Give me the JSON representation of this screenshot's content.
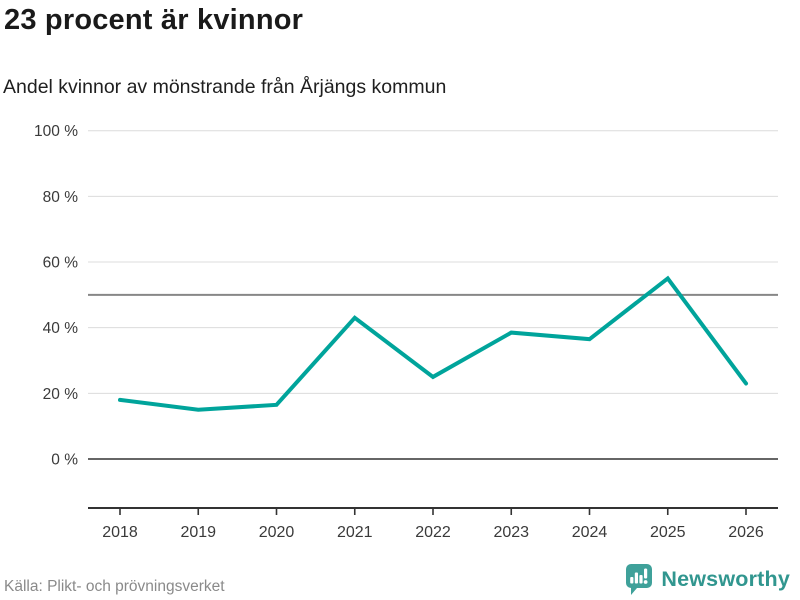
{
  "header": {
    "title": "23 procent är kvinnor",
    "subtitle": "Andel kvinnor av mönstrande från Årjängs kommun"
  },
  "chart_data": {
    "type": "line",
    "title": "23 procent är kvinnor",
    "subtitle": "Andel kvinnor av mönstrande från Årjängs kommun",
    "x": [
      "2018",
      "2019",
      "2020",
      "2021",
      "2022",
      "2023",
      "2024",
      "2025",
      "2026"
    ],
    "series": [
      {
        "name": "Andel kvinnor av mönstrande",
        "values": [
          18,
          15,
          16.5,
          43,
          25,
          38.5,
          36.5,
          55,
          23
        ]
      }
    ],
    "unit": "%",
    "ylim": [
      0,
      100
    ],
    "yticks": [
      0,
      20,
      40,
      60,
      80,
      100
    ],
    "ytick_labels": [
      "0 %",
      "20 %",
      "40 %",
      "60 %",
      "80 %",
      "100 %"
    ],
    "reference_line": 50,
    "grid": true,
    "legend_position": "none",
    "colors": {
      "line": "#00a49b",
      "grid": "#dcdcdc",
      "zero_line": "#333333",
      "reference_line": "#878787",
      "axis": "#333333",
      "tick_label": "#3a3a3a"
    }
  },
  "footer": {
    "source": "Källa: Plikt- och prövningsverket",
    "brand": "Newsworthy",
    "brand_color": "#31968f",
    "brand_icon_color": "#3fa19a"
  }
}
